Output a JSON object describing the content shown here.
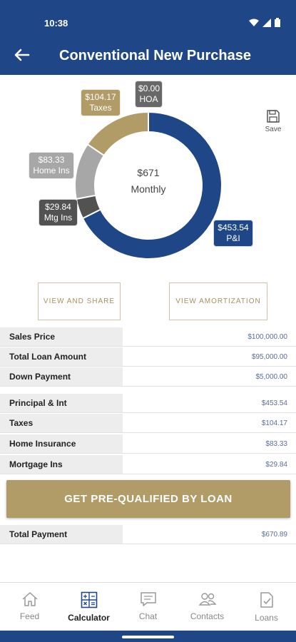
{
  "status": {
    "time": "10:38"
  },
  "header": {
    "title": "Conventional New Purchase"
  },
  "chart_data": {
    "type": "pie",
    "style": "donut",
    "center_value": "$671",
    "center_label": "Monthly",
    "slices": [
      {
        "label": "P&I",
        "value": 453.54,
        "display": "$453.54",
        "color": "#1f4788"
      },
      {
        "label": "Mtg Ins",
        "value": 29.84,
        "display": "$29.84",
        "color": "#525252"
      },
      {
        "label": "Home Ins",
        "value": 83.33,
        "display": "$83.33",
        "color": "#a7a7a7"
      },
      {
        "label": "Taxes",
        "value": 104.17,
        "display": "$104.17",
        "color": "#b19b66"
      },
      {
        "label": "HOA",
        "value": 0.0,
        "display": "$0.00",
        "color": "#686868"
      }
    ]
  },
  "save_label": "Save",
  "buttons": {
    "share": "VIEW AND SHARE",
    "amortization": "VIEW AMORTIZATION",
    "cta": "GET PRE-QUALIFIED BY LOAN"
  },
  "loan_rows": [
    {
      "label": "Sales Price",
      "value": "$100,000.00"
    },
    {
      "label": "Total Loan Amount",
      "value": "$95,000.00"
    },
    {
      "label": "Down Payment",
      "value": "$5,000.00"
    }
  ],
  "payment_rows": [
    {
      "label": "Principal & Int",
      "value": "$453.54"
    },
    {
      "label": "Taxes",
      "value": "$104.17"
    },
    {
      "label": "Home Insurance",
      "value": "$83.33"
    },
    {
      "label": "Mortgage Ins",
      "value": "$29.84"
    }
  ],
  "total_row": {
    "label": "Total Payment",
    "value": "$670.89"
  },
  "nav": [
    {
      "label": "Feed",
      "icon": "home-icon"
    },
    {
      "label": "Calculator",
      "icon": "calculator-icon",
      "active": true
    },
    {
      "label": "Chat",
      "icon": "chat-icon"
    },
    {
      "label": "Contacts",
      "icon": "contacts-icon"
    },
    {
      "label": "Loans",
      "icon": "loans-icon"
    }
  ],
  "colors": {
    "primary": "#1f4788",
    "gold": "#b19b66"
  }
}
